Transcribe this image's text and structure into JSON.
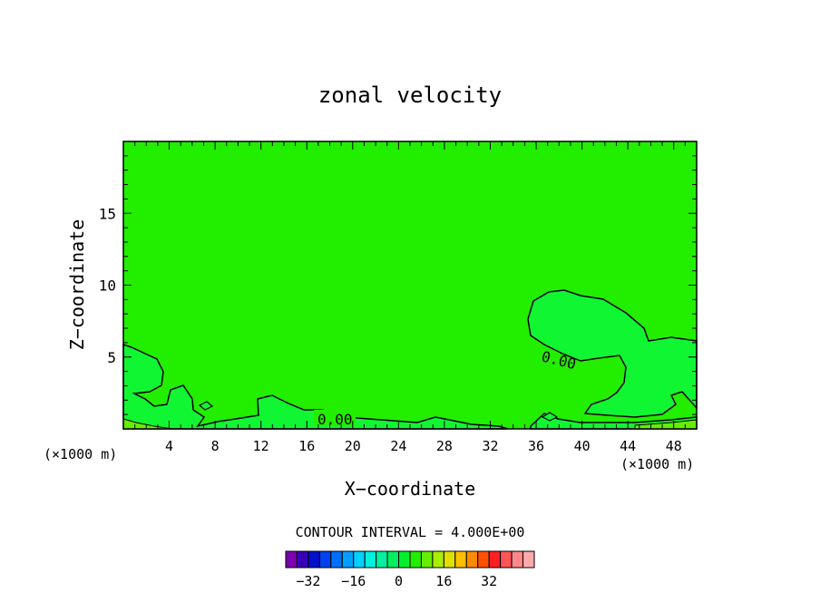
{
  "chart_data": {
    "type": "contour",
    "title": "zonal velocity",
    "xlabel": "X−coordinate",
    "ylabel": "Z−coordinate",
    "x_unit_left": "(×1000 m)",
    "x_unit_right": "(×1000 m)",
    "xlim": [
      0,
      50
    ],
    "ylim": [
      0,
      20
    ],
    "x_ticks": [
      4,
      8,
      12,
      16,
      20,
      24,
      28,
      32,
      36,
      40,
      44,
      48
    ],
    "y_ticks": [
      5,
      10,
      15
    ],
    "contour_interval_label": "CONTOUR INTERVAL = 4.000E+00",
    "contour_labels": [
      {
        "text": "0.00",
        "x": 38.5,
        "y": 5.0
      },
      {
        "text": "0.00",
        "x": 18.5,
        "y": 0.6
      }
    ],
    "background_color": "#22ee00",
    "region_color": "#11f633",
    "colorbar": {
      "colors": [
        "#7a00b0",
        "#3800b8",
        "#0010cc",
        "#0040f0",
        "#0070ff",
        "#00a0ff",
        "#00d0ff",
        "#00f0e0",
        "#00f0a0",
        "#00f060",
        "#00f030",
        "#22ee00",
        "#66ee00",
        "#a8ee00",
        "#e0e000",
        "#ffc000",
        "#ff8c00",
        "#ff5000",
        "#ff2020",
        "#ff5555",
        "#ff8888",
        "#ffaaaa"
      ],
      "tick_labels": [
        {
          "text": "−32",
          "value": -32
        },
        {
          "text": "−16",
          "value": -16
        },
        {
          "text": "0",
          "value": 0
        },
        {
          "text": "16",
          "value": 16
        },
        {
          "text": "32",
          "value": 32
        }
      ]
    }
  }
}
